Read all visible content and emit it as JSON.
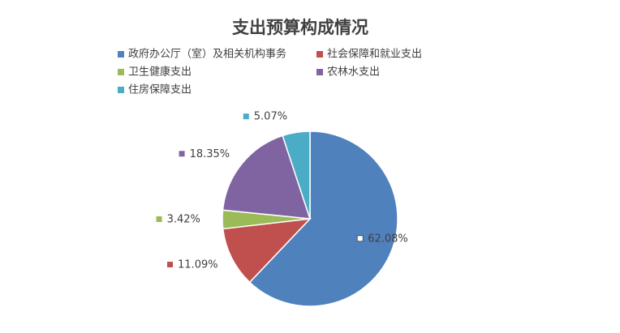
{
  "chart_data": {
    "type": "pie",
    "title": "支出预算构成情况",
    "categories": [
      "政府办公厅（室）及相关机构事务",
      "社会保障和就业支出",
      "卫生健康支出",
      "农林水支出",
      "住房保障支出"
    ],
    "values": [
      62.08,
      11.09,
      3.42,
      18.35,
      5.07
    ],
    "value_labels": [
      "62.08%",
      "11.09%",
      "3.42%",
      "18.35%",
      "5.07%"
    ],
    "colors": [
      "#4f81bd",
      "#c0504d",
      "#9bbb59",
      "#8064a2",
      "#4bacc6"
    ]
  }
}
